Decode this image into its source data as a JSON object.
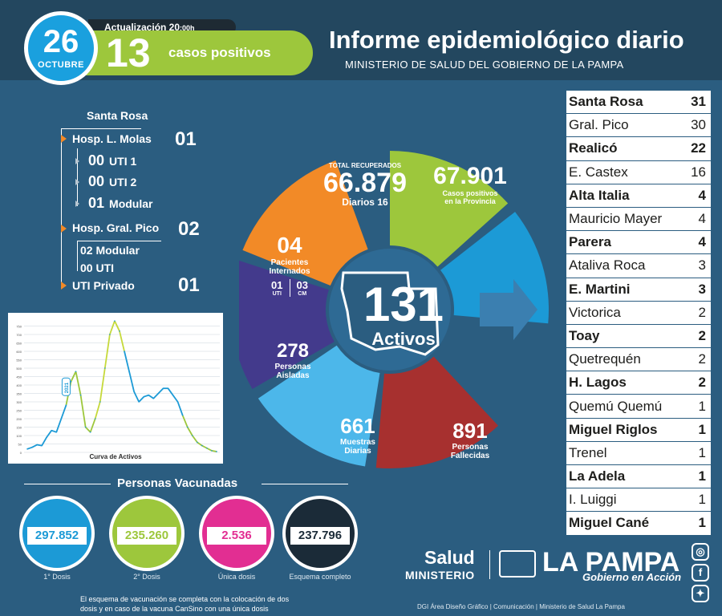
{
  "header": {
    "day": "26",
    "month": "OCTUBRE",
    "update_label": "Actualización 20",
    "update_time_small": ":00h",
    "positive_count": "13",
    "positive_label": "casos positivos",
    "title": "Informe epidemiológico diario",
    "subtitle": "MINISTERIO DE SALUD DEL GOBIERNO DE LA PAMPA"
  },
  "hospitals": {
    "section_title": "Santa Rosa",
    "molas": {
      "label": "Hosp. L. Molas",
      "value": "01"
    },
    "molas_sub": [
      {
        "value": "00",
        "label": "UTI 1"
      },
      {
        "value": "00",
        "label": "UTI 2"
      },
      {
        "value": "01",
        "label": "Modular"
      }
    ],
    "pico": {
      "label": "Hosp. Gral. Pico",
      "value": "02"
    },
    "pico_sub": [
      {
        "value": "02",
        "label": "Modular"
      },
      {
        "value": "00",
        "label": "UTI"
      }
    ],
    "privado": {
      "label": "UTI Privado",
      "value": "01"
    }
  },
  "chart_data": {
    "type": "line",
    "title": "Curva de Activos",
    "callout_label": "2021",
    "series": [
      {
        "values": [
          20,
          30,
          45,
          40,
          90,
          130,
          120,
          200,
          280,
          420,
          480,
          340,
          150,
          120,
          200,
          300,
          500,
          700,
          780,
          720,
          600,
          480,
          360,
          300,
          330,
          340,
          320,
          350,
          380,
          380,
          340,
          300,
          220,
          150,
          100,
          60,
          40,
          25,
          10,
          5
        ]
      }
    ],
    "y_ticks": [
      "0",
      "50",
      "100",
      "150",
      "200",
      "250",
      "300",
      "350",
      "400",
      "450",
      "500",
      "550",
      "600",
      "650",
      "700",
      "750"
    ],
    "ylim": [
      0,
      800
    ],
    "grid": true
  },
  "ring": {
    "recovered_label": "TOTAL RECUPERADOS",
    "recovered_value": "66.879",
    "recovered_daily_label": "Diarios",
    "recovered_daily_value": "16",
    "positives_value": "67.901",
    "positives_label_1": "Casos positivos",
    "positives_label_2": "en la Provincia",
    "hosp_value": "04",
    "hosp_label_1": "Pacientes",
    "hosp_label_2": "Internados",
    "uti_value": "01",
    "uti_label": "UTI",
    "cm_value": "03",
    "cm_label": "CM",
    "active_value": "131",
    "active_label": "Activos",
    "isolated_value": "278",
    "isolated_label_1": "Personas",
    "isolated_label_2": "Aisladas",
    "samples_value": "661",
    "samples_label_1": "Muestras",
    "samples_label_2": "Diarias",
    "deaths_value": "891",
    "deaths_label_1": "Personas",
    "deaths_label_2": "Fallecidas",
    "colors": {
      "recovered": "#9dc73c",
      "positives": "#1c9ad6",
      "hosp": "#f28a27",
      "isolated": "#433a8c",
      "samples": "#4cb7ea",
      "deaths": "#a7302f",
      "center": "#2e6a94"
    }
  },
  "vaccination": {
    "title": "Personas Vacunadas",
    "items": [
      {
        "value": "297.852",
        "label": "1° Dosis",
        "color": "#1c9ad6"
      },
      {
        "value": "235.260",
        "label": "2° Dosis",
        "color": "#9dc73c"
      },
      {
        "value": "2.536",
        "label": "Única dosis",
        "color": "#e22e92"
      },
      {
        "value": "237.796",
        "label": "Esquema completo",
        "color": "#1b2b38"
      }
    ],
    "footnote": "El esquema de vacunación se completa con la colocación de dos dosis y en caso de la vacuna CanSino con una única dosis"
  },
  "localities": [
    {
      "name": "Santa Rosa",
      "count": "31",
      "bold": true
    },
    {
      "name": "Gral. Pico",
      "count": "30",
      "bold": false
    },
    {
      "name": "Realicó",
      "count": "22",
      "bold": true
    },
    {
      "name": "E. Castex",
      "count": "16",
      "bold": false
    },
    {
      "name": "Alta Italia",
      "count": "4",
      "bold": true
    },
    {
      "name": "Mauricio Mayer",
      "count": "4",
      "bold": false
    },
    {
      "name": "Parera",
      "count": "4",
      "bold": true
    },
    {
      "name": "Ataliva Roca",
      "count": "3",
      "bold": false
    },
    {
      "name": "E. Martini",
      "count": "3",
      "bold": true
    },
    {
      "name": "Victorica",
      "count": "2",
      "bold": false
    },
    {
      "name": "Toay",
      "count": "2",
      "bold": true
    },
    {
      "name": "Quetrequén",
      "count": "2",
      "bold": false
    },
    {
      "name": "H. Lagos",
      "count": "2",
      "bold": true
    },
    {
      "name": "Quemú Quemú",
      "count": "1",
      "bold": false
    },
    {
      "name": "Miguel Riglos",
      "count": "1",
      "bold": true
    },
    {
      "name": "Trenel",
      "count": "1",
      "bold": false
    },
    {
      "name": "La Adela",
      "count": "1",
      "bold": true
    },
    {
      "name": "I. Luiggi",
      "count": "1",
      "bold": false
    },
    {
      "name": "Miguel Cané",
      "count": "1",
      "bold": true
    }
  ],
  "footer": {
    "salud_1": "Salud",
    "salud_2": "MINISTERIO",
    "lp_name": "LA PAMPA",
    "lp_slogan": "Gobierno en Acción",
    "credits": "DGI Área Diseño Gráfico  | Comunicación | Ministerio de Salud La Pampa",
    "social": [
      {
        "icon": "instagram-icon",
        "glyph": "◎"
      },
      {
        "icon": "facebook-icon",
        "glyph": "f"
      },
      {
        "icon": "twitter-icon",
        "glyph": "✦"
      }
    ]
  }
}
